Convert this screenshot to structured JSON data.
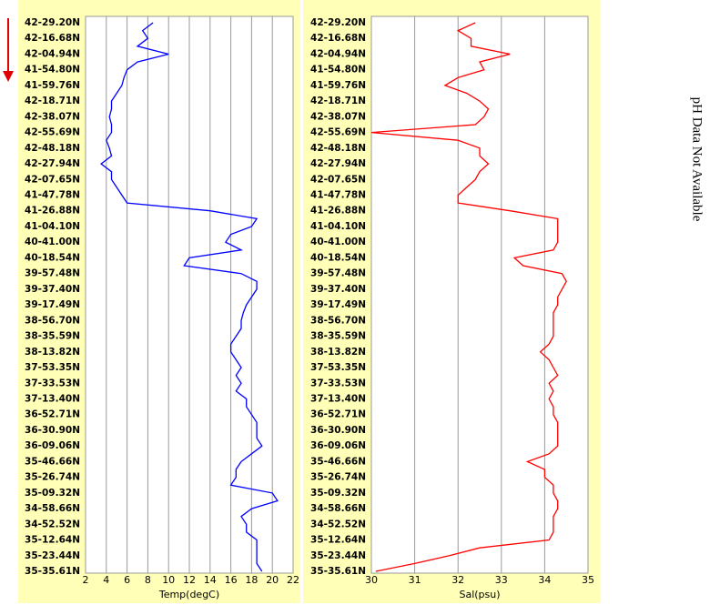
{
  "chart_data": [
    {
      "type": "line",
      "xlabel": "Temp(degC)",
      "color": "#0000ff",
      "categories": [
        "42-29.20N",
        null,
        "42-16.68N",
        null,
        "42-04.94N",
        null,
        "41-54.80N",
        null,
        "41-59.76N",
        null,
        "42-18.71N",
        null,
        "42-38.07N",
        null,
        "42-55.69N",
        null,
        "42-48.18N",
        null,
        "42-27.94N",
        null,
        "42-07.65N",
        null,
        "41-47.78N",
        null,
        "41-26.88N",
        null,
        "41-04.10N",
        null,
        "40-41.00N",
        null,
        "40-18.54N",
        null,
        "39-57.48N",
        null,
        "39-37.40N",
        null,
        "39-17.49N",
        null,
        "38-56.70N",
        null,
        "38-35.59N",
        null,
        "38-13.82N",
        null,
        "37-53.35N",
        null,
        "37-33.53N",
        null,
        "37-13.40N",
        null,
        "36-52.71N",
        null,
        "36-30.90N",
        null,
        "36-09.06N",
        null,
        "35-46.66N",
        null,
        "35-26.74N",
        null,
        "35-09.32N",
        null,
        "34-58.66N",
        null,
        "34-52.52N",
        null,
        "35-12.64N",
        null,
        "35-23.44N",
        null,
        "35-35.61N"
      ],
      "values": [
        8.5,
        7.5,
        8,
        7,
        10,
        7,
        6,
        5.7,
        5.5,
        5,
        4.5,
        4.5,
        4.3,
        4.5,
        4.5,
        4,
        4.3,
        4.5,
        3.5,
        4.5,
        4.5,
        5,
        5.5,
        6,
        14,
        18.5,
        18,
        16,
        15.5,
        17,
        12,
        11.5,
        17,
        18.5,
        18.5,
        18,
        17.5,
        17.2,
        17,
        17,
        16.5,
        16,
        16,
        16.5,
        17,
        16.5,
        17,
        16.5,
        17.5,
        17.5,
        18,
        18.5,
        18.5,
        18.5,
        19,
        18,
        17,
        16.5,
        16.5,
        16,
        20,
        20.5,
        18,
        17,
        17.5,
        17.5,
        18.5,
        18.5,
        18.5,
        18.5,
        19
      ],
      "xlim": [
        2,
        22
      ],
      "xticks": [
        2,
        4,
        6,
        8,
        10,
        12,
        14,
        16,
        18,
        20,
        22
      ],
      "grid": true
    },
    {
      "type": "line",
      "xlabel": "Sal(psu)",
      "color": "#ff0000",
      "categories": [
        "42-29.20N",
        null,
        "42-16.68N",
        null,
        "42-04.94N",
        null,
        "41-54.80N",
        null,
        "41-59.76N",
        null,
        "42-18.71N",
        null,
        "42-38.07N",
        null,
        "42-55.69N",
        null,
        "42-48.18N",
        null,
        "42-27.94N",
        null,
        "42-07.65N",
        null,
        "41-47.78N",
        null,
        "41-26.88N",
        null,
        "41-04.10N",
        null,
        "40-41.00N",
        null,
        "40-18.54N",
        null,
        "39-57.48N",
        null,
        "39-37.40N",
        null,
        "39-17.49N",
        null,
        "38-56.70N",
        null,
        "38-35.59N",
        null,
        "38-13.82N",
        null,
        "37-53.35N",
        null,
        "37-33.53N",
        null,
        "37-13.40N",
        null,
        "36-52.71N",
        null,
        "36-30.90N",
        null,
        "36-09.06N",
        null,
        "35-46.66N",
        null,
        "35-26.74N",
        null,
        "35-09.32N",
        null,
        "34-58.66N",
        null,
        "34-52.52N",
        null,
        "35-12.64N",
        null,
        "35-23.44N",
        null,
        "35-35.61N"
      ],
      "values": [
        32.4,
        32,
        32.3,
        32.3,
        33.2,
        32.5,
        32.6,
        32,
        31.7,
        32.2,
        32.5,
        32.7,
        32.6,
        32.4,
        30,
        32,
        32.5,
        32.5,
        32.7,
        32.5,
        32.4,
        32.2,
        32,
        32,
        33.2,
        34.3,
        34.3,
        34.3,
        34.3,
        34.2,
        33.3,
        33.5,
        34.4,
        34.5,
        34.4,
        34.3,
        34.3,
        34.2,
        34.2,
        34.2,
        34.2,
        34.1,
        33.9,
        34.1,
        34.2,
        34.3,
        34.1,
        34.2,
        34.1,
        34.2,
        34.2,
        34.3,
        34.3,
        34.3,
        34.3,
        34.1,
        33.6,
        34,
        34,
        34.2,
        34.2,
        34.3,
        34.3,
        34.2,
        34.2,
        34.2,
        34.1,
        32.5,
        31.8,
        31,
        30.1
      ],
      "xlim": [
        30,
        35
      ],
      "xticks": [
        30,
        31,
        32,
        33,
        34,
        35
      ],
      "grid": true
    }
  ],
  "side_text": "pH Data Not Available"
}
